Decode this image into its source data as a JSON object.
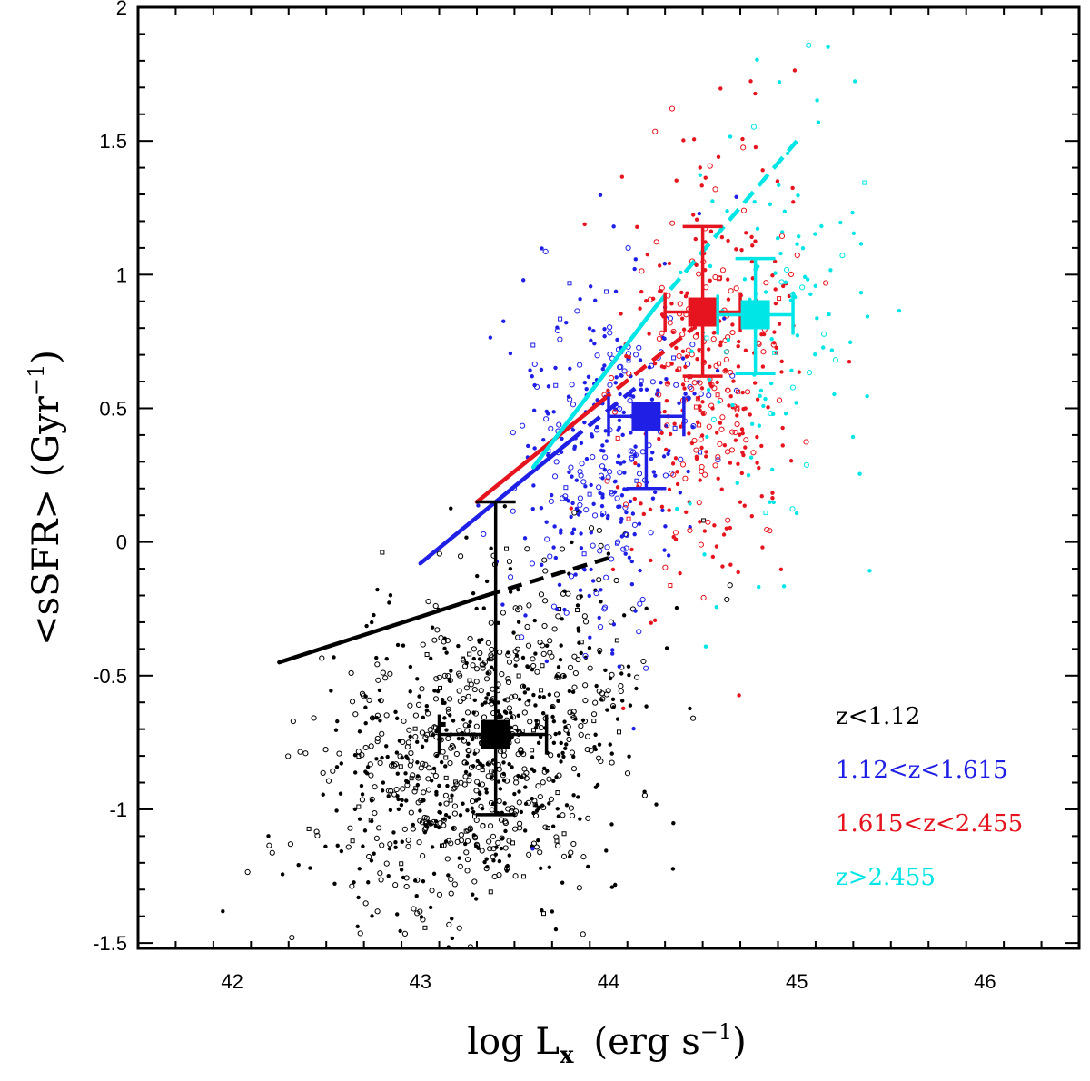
{
  "chart_data": {
    "type": "scatter",
    "title": "",
    "xlabel": "log L",
    "xlabel_sub": "x",
    "xlabel_units": "(erg s",
    "xlabel_units_sup": "−1",
    "ylabel": "<sSFR>  (Gyr",
    "ylabel_sup": "−1",
    "xlim": [
      41.5,
      46.5
    ],
    "ylim": [
      -1.52,
      2.0
    ],
    "x_ticks": [
      {
        "value": 42,
        "label": "42"
      },
      {
        "value": 43,
        "label": "43"
      },
      {
        "value": 44,
        "label": "44"
      },
      {
        "value": 45,
        "label": "45"
      },
      {
        "value": 46,
        "label": "46"
      }
    ],
    "y_ticks": [
      {
        "value": -1.5,
        "label": "-1.5"
      },
      {
        "value": -1,
        "label": "-1"
      },
      {
        "value": -0.5,
        "label": "-0.5"
      },
      {
        "value": 0,
        "label": "0"
      },
      {
        "value": 0.5,
        "label": "0.5"
      },
      {
        "value": 1,
        "label": "1"
      },
      {
        "value": 1.5,
        "label": "1.5"
      },
      {
        "value": 2,
        "label": "2"
      }
    ],
    "x_minor_step": 0.2,
    "y_minor_step": 0.1,
    "legend_position": "bottom-right",
    "series": [
      {
        "name": "z<1.12",
        "label": "z<1.12",
        "color": "#000000",
        "cloud_center": [
          43.3,
          -0.78
        ],
        "cloud_spread": [
          0.75,
          0.4
        ],
        "n_points": 1000,
        "open_fraction": 0.55,
        "mean": {
          "x": 43.4,
          "y": -0.72,
          "xerr_low": 0.3,
          "xerr_high": 0.27,
          "yerr_low": 0.3,
          "yerr_high": 0.87
        },
        "fit": {
          "x": [
            42.25,
            43.35
          ],
          "y": [
            -0.45,
            -0.2
          ]
        },
        "fit_extrapolation": {
          "x": [
            43.35,
            44.0
          ],
          "y": [
            -0.2,
            -0.06
          ]
        }
      },
      {
        "name": "1.12<z<1.615",
        "label": "1.12<z<1.615",
        "color": "#1f1fe6",
        "cloud_center": [
          44.0,
          0.35
        ],
        "cloud_spread": [
          0.45,
          0.45
        ],
        "n_points": 380,
        "open_fraction": 0.4,
        "mean": {
          "x": 44.2,
          "y": 0.47,
          "xerr_low": 0.2,
          "xerr_high": 0.2,
          "yerr_low": 0.27,
          "yerr_high": 0.0
        },
        "fit": {
          "x": [
            43.0,
            43.8
          ],
          "y": [
            -0.08,
            0.38
          ]
        },
        "fit_extrapolation": {
          "x": [
            43.8,
            44.15
          ],
          "y": [
            0.38,
            0.58
          ]
        }
      },
      {
        "name": "1.615<z<2.455",
        "label": "1.615<z<2.455",
        "color": "#e6141e",
        "cloud_center": [
          44.55,
          0.65
        ],
        "cloud_spread": [
          0.42,
          0.5
        ],
        "n_points": 380,
        "open_fraction": 0.4,
        "mean": {
          "x": 44.5,
          "y": 0.86,
          "xerr_low": 0.2,
          "xerr_high": 0.2,
          "yerr_low": 0.24,
          "yerr_high": 0.32
        },
        "fit": {
          "x": [
            43.3,
            43.95
          ],
          "y": [
            0.15,
            0.52
          ]
        },
        "fit_extrapolation": {
          "x": [
            43.95,
            44.45
          ],
          "y": [
            0.52,
            0.8
          ]
        }
      },
      {
        "name": "z>2.455",
        "label": "z>2.455",
        "color": "#00e5e5",
        "cloud_center": [
          44.9,
          0.85
        ],
        "cloud_spread": [
          0.45,
          0.55
        ],
        "n_points": 120,
        "open_fraction": 0.2,
        "mean": {
          "x": 44.78,
          "y": 0.85,
          "xerr_low": 0.2,
          "xerr_high": 0.2,
          "yerr_low": 0.22,
          "yerr_high": 0.21
        },
        "fit": {
          "x": [
            43.6,
            44.25
          ],
          "y": [
            0.28,
            0.88
          ]
        },
        "fit_extrapolation": {
          "x": [
            44.25,
            45.0
          ],
          "y": [
            0.88,
            1.5
          ]
        }
      }
    ]
  }
}
